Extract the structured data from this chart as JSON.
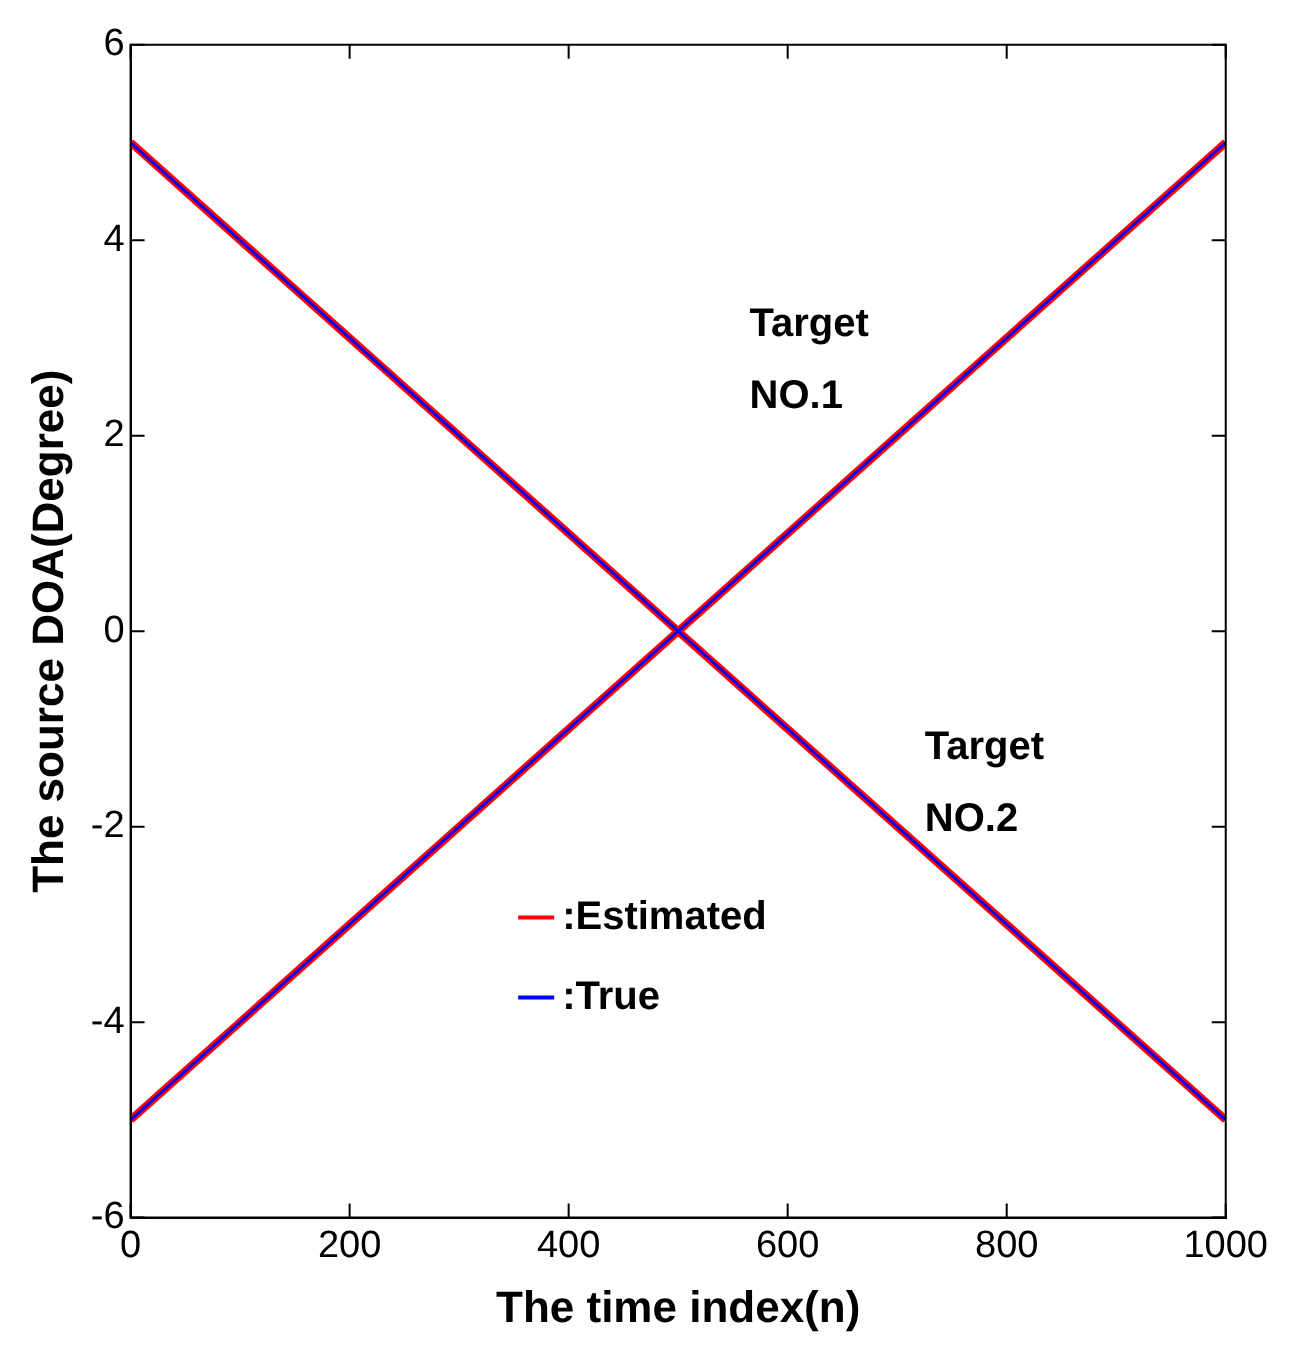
{
  "chart_data": {
    "type": "line",
    "xlabel": "The time index(n)",
    "ylabel": "The source DOA(Degree)",
    "xlim": [
      0,
      1000
    ],
    "xticks": [
      0,
      200,
      400,
      600,
      800,
      1000
    ],
    "ylim": [
      -6,
      6
    ],
    "yticks": [
      -6,
      -4,
      -2,
      0,
      2,
      4,
      6
    ],
    "grid": false,
    "legend": "bottom",
    "marker": "none",
    "line_style": "solid",
    "x": [
      0,
      1000
    ],
    "series": [
      {
        "name": ":Estimated",
        "color": "#ff0000",
        "values": [
          -5,
          5
        ]
      },
      {
        "color": "#ff0000",
        "values": [
          5,
          -5
        ]
      },
      {
        "name": ":True",
        "color": "#0000ff",
        "values": [
          -5,
          5
        ]
      },
      {
        "color": "#0000ff",
        "values": [
          5,
          -5
        ]
      }
    ],
    "annotations": [
      "Target NO.1",
      "Target NO.2"
    ]
  }
}
